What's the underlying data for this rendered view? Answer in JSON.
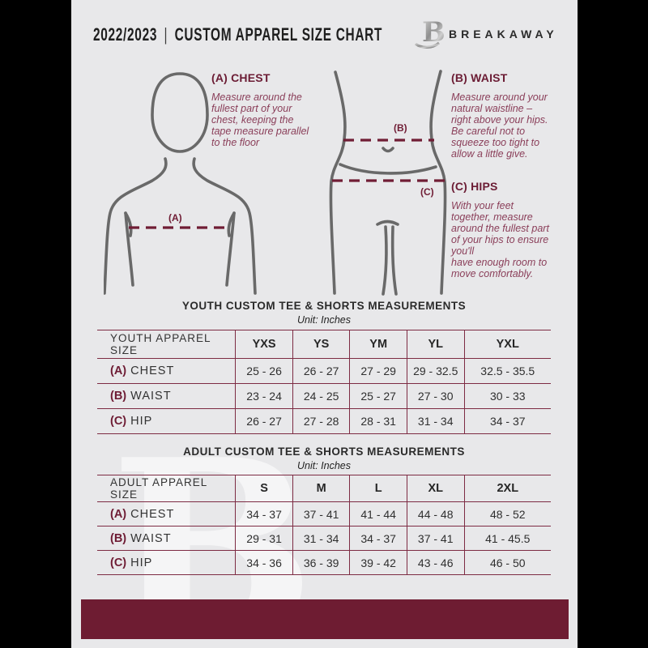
{
  "header": {
    "year": "2022/2023",
    "divider": "|",
    "title": "CUSTOM APPAREL SIZE CHART",
    "brand": "BREAKAWAY",
    "logo_letter": "B"
  },
  "diagram": {
    "a": "(A)",
    "b": "(B)",
    "c": "(C)"
  },
  "instructions": [
    {
      "label": "(A) CHEST",
      "text": "Measure around the\nfullest part of your\nchest, keeping the\ntape measure parallel\nto the floor"
    },
    {
      "label": "(B) WAIST",
      "text": "Measure around your\nnatural waistline –\nright above your hips.\nBe careful not to\nsqueeze too tight to\nallow a little give."
    },
    {
      "label": "(C) HIPS",
      "text": "With your feet\ntogether, measure\naround the fullest part\nof your hips to ensure\nyou'll\nhave enough room to\nmove comfortably."
    }
  ],
  "tables": [
    {
      "title": "YOUTH CUSTOM TEE & SHORTS MEASUREMENTS",
      "unit": "Unit: Inches",
      "header": [
        "YOUTH APPAREL SIZE",
        "YXS",
        "YS",
        "YM",
        "YL",
        "YXL"
      ],
      "rows": [
        {
          "prefix": "(A)",
          "label": "CHEST",
          "values": [
            "25 - 26",
            "26 - 27",
            "27 - 29",
            "29 - 32.5",
            "32.5 - 35.5"
          ]
        },
        {
          "prefix": "(B)",
          "label": "WAIST",
          "values": [
            "23 - 24",
            "24 - 25",
            "25 - 27",
            "27 - 30",
            "30 - 33"
          ]
        },
        {
          "prefix": "(C)",
          "label": "HIP",
          "values": [
            "26 - 27",
            "27 - 28",
            "28 - 31",
            "31 - 34",
            "34 - 37"
          ]
        }
      ]
    },
    {
      "title": "ADULT CUSTOM TEE & SHORTS MEASUREMENTS",
      "unit": "Unit: Inches",
      "header": [
        "ADULT APPAREL SIZE",
        "S",
        "M",
        "L",
        "XL",
        "2XL"
      ],
      "rows": [
        {
          "prefix": "(A)",
          "label": "CHEST",
          "values": [
            "34 - 37",
            "37 - 41",
            "41 - 44",
            "44 - 48",
            "48 - 52"
          ]
        },
        {
          "prefix": "(B)",
          "label": "WAIST",
          "values": [
            "29 - 31",
            "31 - 34",
            "34 - 37",
            "37 - 41",
            "41 - 45.5"
          ]
        },
        {
          "prefix": "(C)",
          "label": "HIP",
          "values": [
            "34 - 36",
            "36 - 39",
            "39 - 42",
            "43 - 46",
            "46 - 50"
          ]
        }
      ]
    }
  ],
  "watermark": {
    "letter": "B"
  },
  "colors": {
    "maroon_dark": "#6e1c32",
    "maroon_line": "#7d2b43",
    "maroon_text": "#8a3e59",
    "page_bg": "#e8e8ea",
    "figure_gray": "#696969",
    "side_bars": "#000000"
  }
}
